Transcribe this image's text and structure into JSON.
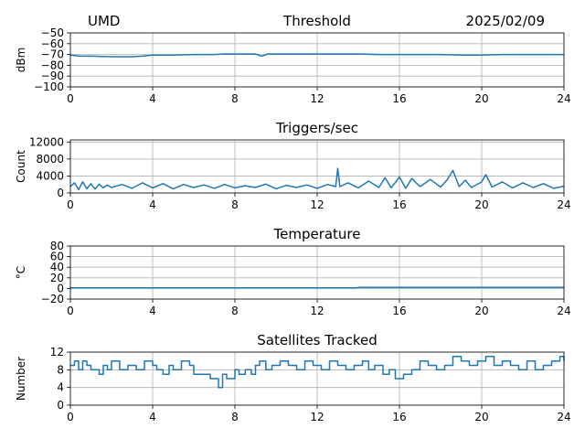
{
  "header": {
    "left": "UMD",
    "date": "2025/02/09"
  },
  "chart_data": [
    {
      "type": "line",
      "title": "Threshold",
      "ylabel": "dBm",
      "xlim": [
        0,
        24
      ],
      "ylim": [
        -100,
        -50
      ],
      "x_ticks": [
        0,
        4,
        8,
        12,
        16,
        20,
        24
      ],
      "y_ticks": [
        -100,
        -90,
        -80,
        -70,
        -60,
        -50
      ],
      "x_tick_labels": [
        "0",
        "4",
        "8",
        "12",
        "16",
        "20",
        "24"
      ],
      "y_tick_labels": [
        "−100",
        "−90",
        "−80",
        "−70",
        "−60",
        "−50"
      ],
      "grid": true,
      "series": [
        {
          "x": [
            0,
            0.5,
            1,
            2,
            3,
            3.5,
            4,
            5,
            6,
            7,
            7.5,
            8,
            9,
            9.3,
            9.6,
            10,
            11,
            12,
            13,
            14,
            15,
            16,
            17,
            18,
            19,
            20,
            21,
            22,
            23,
            24
          ],
          "values": [
            -70.5,
            -71.5,
            -71.5,
            -72,
            -72,
            -71.5,
            -70.5,
            -70.5,
            -70,
            -70,
            -69.5,
            -69.5,
            -69.5,
            -71.5,
            -69.5,
            -69.5,
            -69.5,
            -69.5,
            -69.5,
            -69.5,
            -70,
            -70,
            -70,
            -70,
            -70.5,
            -70.5,
            -70,
            -70,
            -70,
            -70
          ]
        }
      ]
    },
    {
      "type": "line",
      "title": "Triggers/sec",
      "ylabel": "Count",
      "xlim": [
        0,
        24
      ],
      "ylim": [
        0,
        12500
      ],
      "x_ticks": [
        0,
        4,
        8,
        12,
        16,
        20,
        24
      ],
      "y_ticks": [
        0,
        4000,
        8000,
        12000
      ],
      "x_tick_labels": [
        "0",
        "4",
        "8",
        "12",
        "16",
        "20",
        "24"
      ],
      "y_tick_labels": [
        "0",
        "4000",
        "8000",
        "12000"
      ],
      "grid": true,
      "series": [
        {
          "x": [
            0,
            0.2,
            0.4,
            0.6,
            0.8,
            1,
            1.2,
            1.4,
            1.6,
            1.8,
            2,
            2.5,
            3,
            3.5,
            4,
            4.5,
            5,
            5.5,
            6,
            6.5,
            7,
            7.5,
            8,
            8.5,
            9,
            9.5,
            10,
            10.5,
            11,
            11.5,
            12,
            12.5,
            12.9,
            13,
            13.1,
            13.5,
            14,
            14.5,
            15,
            15.3,
            15.6,
            16,
            16.3,
            16.6,
            17,
            17.5,
            18,
            18.3,
            18.6,
            18.9,
            19.2,
            19.5,
            20,
            20.2,
            20.5,
            21,
            21.5,
            22,
            22.5,
            23,
            23.5,
            24
          ],
          "values": [
            1500,
            2400,
            800,
            2600,
            1000,
            2200,
            900,
            2100,
            1200,
            1900,
            1300,
            2000,
            1100,
            2400,
            1200,
            2200,
            1000,
            2000,
            1300,
            1900,
            1100,
            2000,
            1200,
            1700,
            1300,
            2100,
            1000,
            1800,
            1300,
            1900,
            1100,
            2000,
            1500,
            5800,
            1500,
            2400,
            1200,
            2800,
            1300,
            3600,
            1200,
            3800,
            1100,
            3400,
            1500,
            3200,
            1400,
            3000,
            5300,
            1500,
            3000,
            1300,
            2600,
            4300,
            1400,
            2600,
            1200,
            2400,
            1300,
            2200,
            1100,
            1600
          ]
        }
      ]
    },
    {
      "type": "line",
      "title": "Temperature",
      "ylabel": "°C",
      "xlim": [
        0,
        24
      ],
      "ylim": [
        -20,
        80
      ],
      "x_ticks": [
        0,
        4,
        8,
        12,
        16,
        20,
        24
      ],
      "y_ticks": [
        -20,
        0,
        20,
        40,
        60,
        80
      ],
      "x_tick_labels": [
        "0",
        "4",
        "8",
        "12",
        "16",
        "20",
        "24"
      ],
      "y_tick_labels": [
        "−20",
        "0",
        "20",
        "40",
        "60",
        "80"
      ],
      "grid": true,
      "series": [
        {
          "x": [
            0,
            6,
            12,
            13.9,
            14,
            18,
            24
          ],
          "values": [
            1,
            1,
            1,
            1,
            2,
            2,
            2
          ]
        }
      ]
    },
    {
      "type": "line",
      "title": "Satellites Tracked",
      "ylabel": "Number",
      "xlim": [
        0,
        24
      ],
      "ylim": [
        0,
        12
      ],
      "x_ticks": [
        0,
        4,
        8,
        12,
        16,
        20,
        24
      ],
      "y_ticks": [
        0,
        4,
        8,
        12
      ],
      "x_tick_labels": [
        "0",
        "4",
        "8",
        "12",
        "16",
        "20",
        "24"
      ],
      "y_tick_labels": [
        "0",
        "4",
        "8",
        "12"
      ],
      "grid": true,
      "step": true,
      "series": [
        {
          "x": [
            0,
            0.2,
            0.4,
            0.6,
            0.8,
            1,
            1.4,
            1.6,
            1.8,
            2,
            2.4,
            2.8,
            3.2,
            3.6,
            4,
            4.2,
            4.5,
            4.8,
            5,
            5.4,
            5.8,
            6,
            6.4,
            6.8,
            7.2,
            7.4,
            7.6,
            8,
            8.2,
            8.5,
            8.8,
            9,
            9.2,
            9.5,
            9.8,
            10.2,
            10.6,
            11,
            11.4,
            11.8,
            12.2,
            12.6,
            13,
            13.4,
            13.8,
            14.2,
            14.5,
            14.8,
            15.2,
            15.5,
            15.8,
            16.2,
            16.6,
            17,
            17.4,
            17.8,
            18.2,
            18.6,
            19,
            19.4,
            19.8,
            20.2,
            20.6,
            21,
            21.4,
            21.8,
            22.2,
            22.6,
            23,
            23.4,
            23.8,
            24
          ],
          "values": [
            9,
            10,
            8,
            10,
            9,
            8,
            7,
            9,
            8,
            10,
            8,
            9,
            8,
            10,
            9,
            8,
            7,
            9,
            8,
            10,
            9,
            7,
            7,
            6,
            4,
            7,
            6,
            8,
            7,
            8,
            7,
            9,
            10,
            8,
            9,
            10,
            9,
            8,
            10,
            9,
            8,
            10,
            9,
            8,
            9,
            10,
            8,
            9,
            7,
            8,
            6,
            7,
            8,
            10,
            9,
            8,
            9,
            11,
            10,
            9,
            10,
            11,
            9,
            10,
            9,
            8,
            10,
            8,
            9,
            10,
            11,
            10
          ]
        }
      ]
    }
  ]
}
